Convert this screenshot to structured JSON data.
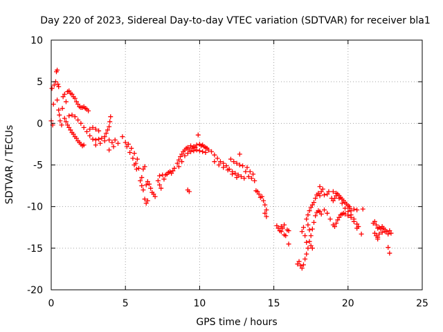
{
  "chart_data": {
    "type": "scatter",
    "title": "Day 220 of 2023, Sidereal Day-to-day VTEC variation (SDTVAR) for receiver bla1",
    "xlabel": "GPS time / hours",
    "ylabel": "SDTVAR / TECUs",
    "xlim": [
      0,
      25
    ],
    "ylim": [
      -20,
      10
    ],
    "xticks": [
      0,
      5,
      10,
      15,
      20,
      25
    ],
    "yticks": [
      -20,
      -15,
      -10,
      -5,
      0,
      5,
      10
    ],
    "xtick_labels": [
      "0",
      "5",
      "10",
      "15",
      "20",
      "25"
    ],
    "ytick_labels": [
      "-20",
      "-15",
      "-10",
      "-5",
      "0",
      "5",
      "10"
    ],
    "grid": true,
    "marker": "plus",
    "color": "#ff0000",
    "series": [
      {
        "name": "SDTVAR",
        "points": [
          [
            0.0,
            0.3
          ],
          [
            0.05,
            4.2
          ],
          [
            0.1,
            -0.2
          ],
          [
            0.15,
            2.3
          ],
          [
            0.2,
            4.6
          ],
          [
            0.3,
            5.0
          ],
          [
            0.35,
            6.2
          ],
          [
            0.4,
            6.4
          ],
          [
            0.45,
            4.7
          ],
          [
            0.5,
            4.4
          ],
          [
            0.4,
            2.8
          ],
          [
            0.5,
            1.6
          ],
          [
            0.55,
            1.0
          ],
          [
            0.6,
            0.3
          ],
          [
            0.7,
            -0.2
          ],
          [
            0.75,
            1.8
          ],
          [
            0.8,
            3.2
          ],
          [
            0.9,
            3.5
          ],
          [
            1.0,
            2.6
          ],
          [
            1.1,
            3.8
          ],
          [
            1.2,
            3.9
          ],
          [
            1.3,
            3.6
          ],
          [
            1.4,
            3.5
          ],
          [
            1.5,
            3.2
          ],
          [
            1.6,
            3.0
          ],
          [
            1.7,
            2.6
          ],
          [
            1.8,
            2.3
          ],
          [
            1.9,
            2.0
          ],
          [
            2.0,
            1.9
          ],
          [
            2.1,
            1.9
          ],
          [
            2.2,
            2.0
          ],
          [
            2.3,
            1.8
          ],
          [
            2.4,
            1.7
          ],
          [
            2.5,
            1.5
          ],
          [
            0.9,
            0.6
          ],
          [
            1.0,
            0.2
          ],
          [
            1.1,
            -0.2
          ],
          [
            1.2,
            -0.5
          ],
          [
            1.3,
            -0.8
          ],
          [
            1.4,
            -1.1
          ],
          [
            1.5,
            -1.3
          ],
          [
            1.6,
            -1.6
          ],
          [
            1.7,
            -1.8
          ],
          [
            1.8,
            -2.1
          ],
          [
            1.9,
            -2.3
          ],
          [
            2.0,
            -2.5
          ],
          [
            2.1,
            -2.7
          ],
          [
            2.2,
            -2.6
          ],
          [
            1.2,
            0.9
          ],
          [
            1.4,
            1.0
          ],
          [
            1.6,
            0.8
          ],
          [
            1.8,
            0.4
          ],
          [
            2.0,
            0.0
          ],
          [
            2.2,
            -0.5
          ],
          [
            2.4,
            -1.0
          ],
          [
            2.6,
            -1.5
          ],
          [
            2.8,
            -1.9
          ],
          [
            3.0,
            -2.0
          ],
          [
            3.2,
            -1.9
          ],
          [
            3.4,
            -1.8
          ],
          [
            3.6,
            -1.6
          ],
          [
            3.7,
            -1.2
          ],
          [
            3.8,
            -0.8
          ],
          [
            3.9,
            -0.4
          ],
          [
            3.95,
            0.2
          ],
          [
            4.0,
            0.8
          ],
          [
            3.0,
            -2.6
          ],
          [
            3.3,
            -2.4
          ],
          [
            3.6,
            -2.1
          ],
          [
            3.9,
            -2.0
          ],
          [
            4.1,
            -2.3
          ],
          [
            4.3,
            -2.0
          ],
          [
            4.5,
            -2.4
          ],
          [
            3.9,
            -3.2
          ],
          [
            4.2,
            -2.8
          ],
          [
            2.6,
            -0.7
          ],
          [
            2.8,
            -0.5
          ],
          [
            3.0,
            -0.7
          ],
          [
            3.2,
            -0.9
          ],
          [
            4.8,
            -1.6
          ],
          [
            5.0,
            -2.3
          ],
          [
            5.1,
            -2.8
          ],
          [
            5.2,
            -2.5
          ],
          [
            5.3,
            -3.5
          ],
          [
            5.4,
            -3.0
          ],
          [
            5.5,
            -4.2
          ],
          [
            5.6,
            -3.6
          ],
          [
            5.7,
            -4.8
          ],
          [
            5.8,
            -4.3
          ],
          [
            5.9,
            -5.4
          ],
          [
            5.6,
            -5.0
          ],
          [
            5.75,
            -5.5
          ],
          [
            6.1,
            -6.5
          ],
          [
            6.2,
            -5.5
          ],
          [
            6.3,
            -5.2
          ],
          [
            6.0,
            -6.9
          ],
          [
            6.1,
            -7.5
          ],
          [
            6.2,
            -8.0
          ],
          [
            6.3,
            -9.1
          ],
          [
            6.4,
            -9.6
          ],
          [
            6.5,
            -9.3
          ],
          [
            6.4,
            -7.4
          ],
          [
            6.5,
            -7.0
          ],
          [
            6.6,
            -7.3
          ],
          [
            6.7,
            -7.8
          ],
          [
            6.8,
            -8.3
          ],
          [
            6.9,
            -8.5
          ],
          [
            7.0,
            -8.8
          ],
          [
            7.2,
            -6.9
          ],
          [
            7.3,
            -7.4
          ],
          [
            7.4,
            -7.8
          ],
          [
            7.3,
            -6.3
          ],
          [
            7.5,
            -6.2
          ],
          [
            7.6,
            -6.7
          ],
          [
            7.7,
            -6.2
          ],
          [
            7.8,
            -6.1
          ],
          [
            7.9,
            -5.9
          ],
          [
            8.0,
            -5.8
          ],
          [
            8.1,
            -6.0
          ],
          [
            8.2,
            -5.7
          ],
          [
            8.3,
            -5.4
          ],
          [
            8.5,
            -4.8
          ],
          [
            8.6,
            -4.4
          ],
          [
            8.7,
            -4.0
          ],
          [
            8.8,
            -3.7
          ],
          [
            8.9,
            -3.4
          ],
          [
            9.0,
            -3.2
          ],
          [
            9.1,
            -3.0
          ],
          [
            9.2,
            -2.9
          ],
          [
            9.3,
            -3.2
          ],
          [
            9.4,
            -2.7
          ],
          [
            9.5,
            -3.0
          ],
          [
            9.6,
            -2.8
          ],
          [
            9.7,
            -2.9
          ],
          [
            9.8,
            -2.6
          ],
          [
            9.9,
            -1.4
          ],
          [
            10.0,
            -2.5
          ],
          [
            10.1,
            -2.7
          ],
          [
            10.2,
            -2.6
          ],
          [
            10.3,
            -2.8
          ],
          [
            10.4,
            -2.9
          ],
          [
            10.5,
            -3.0
          ],
          [
            8.6,
            -5.2
          ],
          [
            8.8,
            -4.6
          ],
          [
            9.0,
            -3.9
          ],
          [
            9.2,
            -3.6
          ],
          [
            9.4,
            -3.4
          ],
          [
            9.6,
            -3.3
          ],
          [
            9.8,
            -3.2
          ],
          [
            10.0,
            -3.3
          ],
          [
            10.2,
            -3.4
          ],
          [
            10.4,
            -3.5
          ],
          [
            9.2,
            -8.0
          ],
          [
            9.3,
            -8.2
          ],
          [
            10.6,
            -3.2
          ],
          [
            10.8,
            -3.4
          ],
          [
            11.0,
            -3.8
          ],
          [
            11.2,
            -4.2
          ],
          [
            11.4,
            -4.6
          ],
          [
            11.6,
            -4.8
          ],
          [
            11.8,
            -5.1
          ],
          [
            12.0,
            -5.5
          ],
          [
            12.2,
            -5.8
          ],
          [
            12.4,
            -6.0
          ],
          [
            12.6,
            -6.2
          ],
          [
            12.8,
            -6.4
          ],
          [
            13.0,
            -6.6
          ],
          [
            11.0,
            -4.6
          ],
          [
            11.3,
            -5.0
          ],
          [
            11.6,
            -5.3
          ],
          [
            11.9,
            -5.6
          ],
          [
            12.2,
            -6.1
          ],
          [
            12.5,
            -6.5
          ],
          [
            12.1,
            -4.3
          ],
          [
            12.3,
            -4.6
          ],
          [
            12.5,
            -4.8
          ],
          [
            12.7,
            -5.0
          ],
          [
            12.9,
            -5.1
          ],
          [
            12.7,
            -3.7
          ],
          [
            13.1,
            -5.8
          ],
          [
            13.3,
            -6.4
          ],
          [
            13.2,
            -5.3
          ],
          [
            13.4,
            -5.8
          ],
          [
            13.6,
            -6.1
          ],
          [
            13.5,
            -6.6
          ],
          [
            13.7,
            -6.9
          ],
          [
            13.8,
            -8.1
          ],
          [
            13.9,
            -8.2
          ],
          [
            14.0,
            -8.5
          ],
          [
            14.1,
            -8.9
          ],
          [
            14.2,
            -8.8
          ],
          [
            14.3,
            -9.3
          ],
          [
            14.4,
            -9.8
          ],
          [
            14.5,
            -10.4
          ],
          [
            14.5,
            -11.2
          ],
          [
            14.4,
            -10.8
          ],
          [
            15.2,
            -12.3
          ],
          [
            15.3,
            -12.6
          ],
          [
            15.4,
            -12.9
          ],
          [
            15.5,
            -12.4
          ],
          [
            15.6,
            -12.6
          ],
          [
            15.7,
            -12.2
          ],
          [
            15.5,
            -13.0
          ],
          [
            15.7,
            -13.4
          ],
          [
            15.8,
            -13.5
          ],
          [
            15.9,
            -12.8
          ],
          [
            16.0,
            -12.9
          ],
          [
            16.0,
            -14.5
          ],
          [
            16.6,
            -16.9
          ],
          [
            16.7,
            -16.6
          ],
          [
            16.8,
            -17.1
          ],
          [
            16.9,
            -17.4
          ],
          [
            17.0,
            -17.0
          ],
          [
            17.1,
            -16.3
          ],
          [
            17.2,
            -15.7
          ],
          [
            17.3,
            -15.0
          ],
          [
            17.4,
            -14.2
          ],
          [
            17.5,
            -13.5
          ],
          [
            17.6,
            -12.7
          ],
          [
            17.7,
            -11.9
          ],
          [
            17.8,
            -11.1
          ],
          [
            17.9,
            -10.7
          ],
          [
            18.0,
            -10.5
          ],
          [
            18.1,
            -10.6
          ],
          [
            18.2,
            -10.9
          ],
          [
            16.9,
            -13.0
          ],
          [
            17.0,
            -12.5
          ],
          [
            17.1,
            -13.5
          ],
          [
            17.2,
            -14.3
          ],
          [
            17.3,
            -12.2
          ],
          [
            17.4,
            -12.8
          ],
          [
            17.5,
            -14.7
          ],
          [
            17.6,
            -15.0
          ],
          [
            17.2,
            -11.5
          ],
          [
            17.3,
            -11.0
          ],
          [
            17.4,
            -10.5
          ],
          [
            17.5,
            -10.1
          ],
          [
            17.6,
            -9.8
          ],
          [
            17.7,
            -9.5
          ],
          [
            17.8,
            -9.0
          ],
          [
            17.9,
            -8.6
          ],
          [
            18.0,
            -8.4
          ],
          [
            18.1,
            -8.7
          ],
          [
            18.2,
            -8.2
          ],
          [
            18.1,
            -7.6
          ],
          [
            18.3,
            -7.9
          ],
          [
            18.4,
            -8.6
          ],
          [
            18.6,
            -8.5
          ],
          [
            18.7,
            -8.2
          ],
          [
            18.9,
            -9.0
          ],
          [
            19.0,
            -9.3
          ],
          [
            19.1,
            -9.0
          ],
          [
            19.2,
            -8.7
          ],
          [
            19.3,
            -8.5
          ],
          [
            19.4,
            -8.7
          ],
          [
            19.5,
            -8.9
          ],
          [
            19.6,
            -9.1
          ],
          [
            19.7,
            -9.3
          ],
          [
            19.8,
            -9.5
          ],
          [
            19.9,
            -9.7
          ],
          [
            20.0,
            -9.9
          ],
          [
            20.1,
            -10.2
          ],
          [
            20.2,
            -10.5
          ],
          [
            20.4,
            -10.3
          ],
          [
            20.6,
            -10.4
          ],
          [
            19.0,
            -8.2
          ],
          [
            19.2,
            -8.4
          ],
          [
            19.4,
            -9.0
          ],
          [
            19.6,
            -9.6
          ],
          [
            19.8,
            -10.2
          ],
          [
            20.0,
            -10.6
          ],
          [
            20.2,
            -11.0
          ],
          [
            20.4,
            -11.5
          ],
          [
            20.6,
            -12.1
          ],
          [
            20.7,
            -12.4
          ],
          [
            18.4,
            -10.4
          ],
          [
            18.6,
            -10.8
          ],
          [
            18.8,
            -11.5
          ],
          [
            19.0,
            -12.2
          ],
          [
            19.1,
            -12.4
          ],
          [
            19.2,
            -12.0
          ],
          [
            19.3,
            -11.6
          ],
          [
            19.4,
            -11.3
          ],
          [
            19.5,
            -11.0
          ],
          [
            19.6,
            -10.9
          ],
          [
            19.7,
            -10.8
          ],
          [
            19.8,
            -10.9
          ],
          [
            20.0,
            -11.1
          ],
          [
            20.2,
            -11.3
          ],
          [
            20.4,
            -11.8
          ],
          [
            20.6,
            -12.6
          ],
          [
            20.9,
            -13.3
          ],
          [
            21.0,
            -10.3
          ],
          [
            20.1,
            -10.0
          ],
          [
            21.8,
            -11.8
          ],
          [
            21.9,
            -12.2
          ],
          [
            22.0,
            -12.6
          ],
          [
            22.1,
            -12.5
          ],
          [
            22.2,
            -12.7
          ],
          [
            22.3,
            -12.4
          ],
          [
            22.4,
            -12.6
          ],
          [
            22.5,
            -13.0
          ],
          [
            21.8,
            -13.2
          ],
          [
            21.9,
            -13.5
          ],
          [
            22.0,
            -13.7
          ],
          [
            22.1,
            -13.3
          ],
          [
            22.3,
            -13.1
          ],
          [
            22.5,
            -12.8
          ],
          [
            22.6,
            -13.0
          ],
          [
            22.7,
            -13.3
          ],
          [
            22.8,
            -12.9
          ],
          [
            22.9,
            -13.2
          ],
          [
            22.7,
            -14.9
          ],
          [
            22.8,
            -15.6
          ],
          [
            21.7,
            -12.0
          ],
          [
            22.0,
            -13.9
          ]
        ]
      }
    ]
  }
}
